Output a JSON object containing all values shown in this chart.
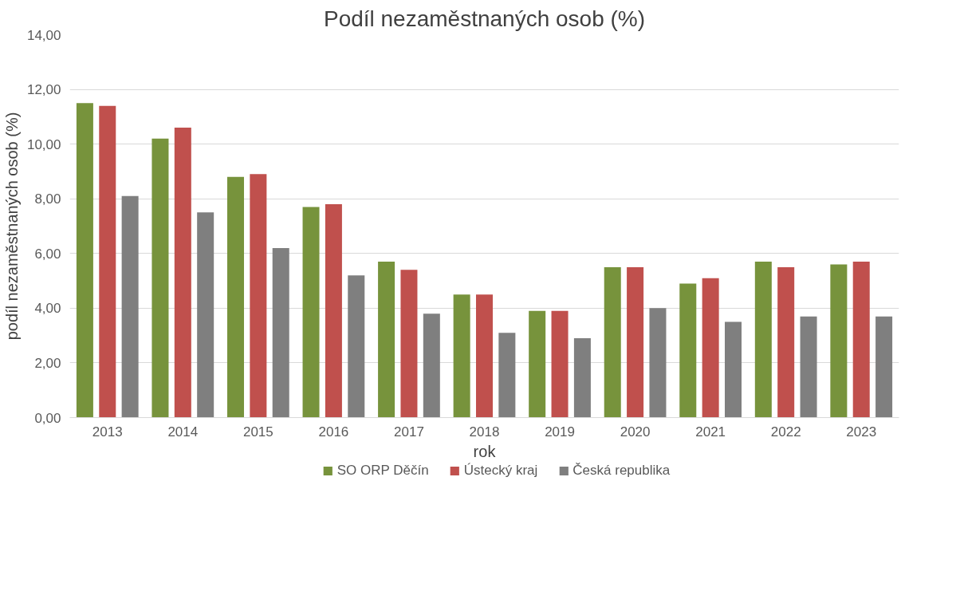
{
  "chart_data": {
    "type": "bar",
    "title": "Podíl nezaměstnaných osob (%)",
    "xlabel": "rok",
    "ylabel": "podíl nezaměstnaných osob (%)",
    "categories": [
      "2013",
      "2014",
      "2015",
      "2016",
      "2017",
      "2018",
      "2019",
      "2020",
      "2021",
      "2022",
      "2023"
    ],
    "series": [
      {
        "name": "SO ORP Děčín",
        "color": "#77933c",
        "values": [
          11.5,
          10.2,
          8.8,
          7.7,
          5.7,
          4.5,
          3.9,
          5.5,
          4.9,
          5.7,
          5.6
        ]
      },
      {
        "name": "Ústecký kraj",
        "color": "#c0504d",
        "values": [
          11.4,
          10.6,
          8.9,
          7.8,
          5.4,
          4.5,
          3.9,
          5.5,
          5.1,
          5.5,
          5.7
        ]
      },
      {
        "name": "Česká republika",
        "color": "#7f7f7f",
        "values": [
          8.1,
          7.5,
          6.2,
          5.2,
          3.8,
          3.1,
          2.9,
          4.0,
          3.5,
          3.7,
          3.7
        ]
      }
    ],
    "ylim": [
      0,
      14
    ],
    "yticks": [
      {
        "value": 0,
        "label": "0,00"
      },
      {
        "value": 2,
        "label": "2,00"
      },
      {
        "value": 4,
        "label": "4,00"
      },
      {
        "value": 6,
        "label": "6,00"
      },
      {
        "value": 8,
        "label": "8,00"
      },
      {
        "value": 10,
        "label": "10,00"
      },
      {
        "value": 12,
        "label": "12,00"
      },
      {
        "value": 14,
        "label": "14,00"
      }
    ],
    "grid": "y",
    "legend": "bottom"
  }
}
